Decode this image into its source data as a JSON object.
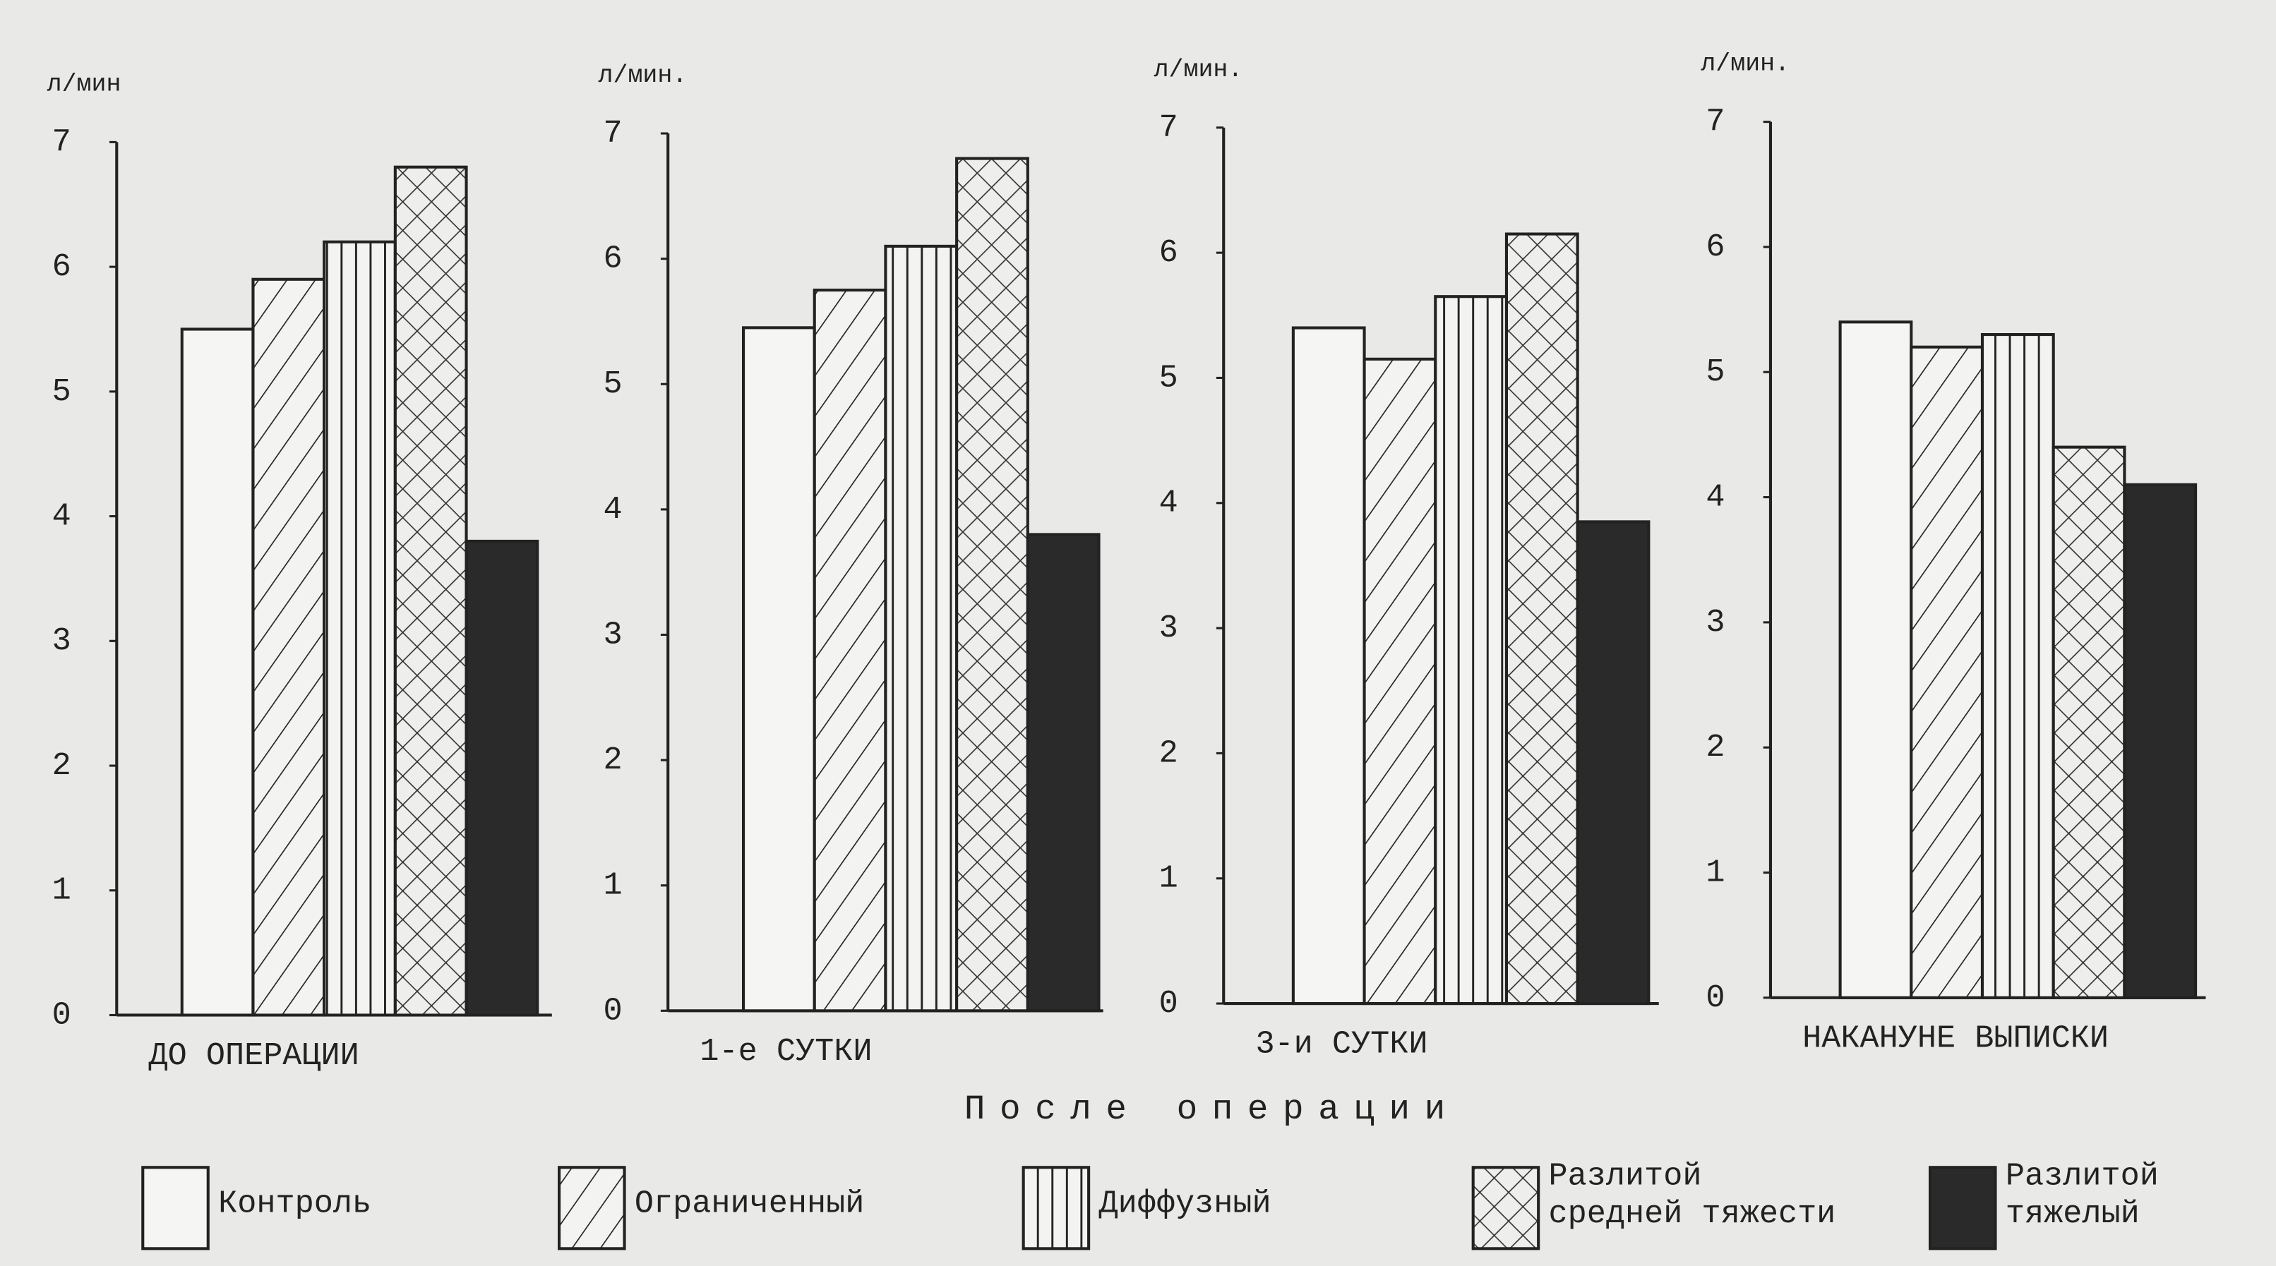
{
  "chart_data": [
    {
      "type": "bar",
      "title": "ДО ОПЕРАЦИИ",
      "y_label": "л/мин",
      "values": [
        5.5,
        5.9,
        6.2,
        6.8,
        3.8
      ],
      "ylim": [
        0,
        7
      ],
      "yticks": [
        0,
        1,
        2,
        3,
        4,
        5,
        6,
        7
      ]
    },
    {
      "type": "bar",
      "title": "1-е СУТКИ",
      "y_label": "л/мин.",
      "values": [
        5.45,
        5.75,
        6.1,
        6.8,
        3.8
      ],
      "ylim": [
        0,
        7
      ],
      "yticks": [
        0,
        1,
        2,
        3,
        4,
        5,
        6,
        7
      ]
    },
    {
      "type": "bar",
      "title": "3-и СУТКИ",
      "y_label": "л/мин.",
      "values": [
        5.4,
        5.15,
        5.65,
        6.15,
        3.85
      ],
      "ylim": [
        0,
        7
      ],
      "yticks": [
        0,
        1,
        2,
        3,
        4,
        5,
        6,
        7
      ]
    },
    {
      "type": "bar",
      "title": "НАКАНУНЕ ВЫПИСКИ",
      "y_label": "л/мин.",
      "values": [
        5.4,
        5.2,
        5.3,
        4.4,
        4.1
      ],
      "ylim": [
        0,
        7
      ],
      "yticks": [
        0,
        1,
        2,
        3,
        4,
        5,
        6,
        7
      ]
    }
  ],
  "caption": "После операции",
  "legend": [
    {
      "lines": [
        "Контроль"
      ],
      "pattern": "none"
    },
    {
      "lines": [
        "Ограниченный"
      ],
      "pattern": "diagonal"
    },
    {
      "lines": [
        "Диффузный"
      ],
      "pattern": "vertical"
    },
    {
      "lines": [
        "Разлитой",
        "средней тяжести"
      ],
      "pattern": "crosshatch"
    },
    {
      "lines": [
        "Разлитой",
        "тяжелый"
      ],
      "pattern": "solid"
    }
  ]
}
